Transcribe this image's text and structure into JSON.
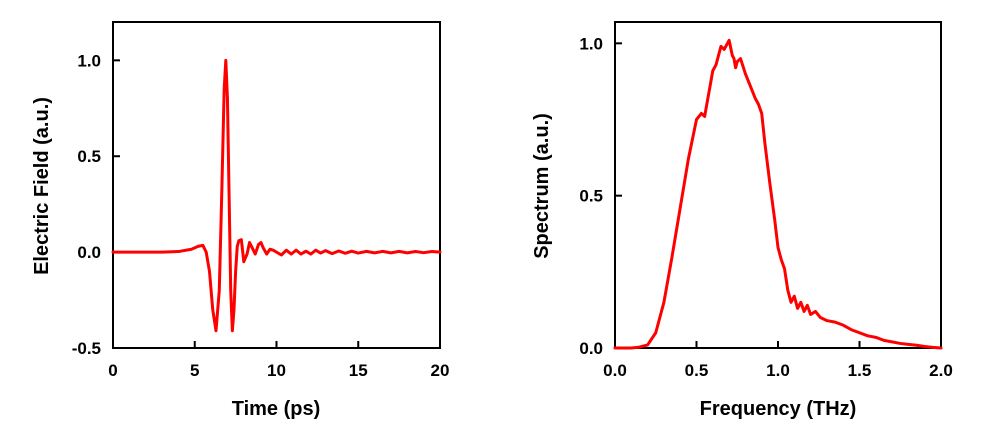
{
  "chart_data": [
    {
      "type": "line",
      "title": "",
      "xlabel": "Time (ps)",
      "ylabel": "Electric Field (a.u.)",
      "xlim": [
        0,
        20
      ],
      "ylim": [
        -0.5,
        1.2
      ],
      "xticks": [
        0,
        5,
        10,
        15,
        20
      ],
      "xtick_labels": [
        "0",
        "5",
        "10",
        "15",
        "20"
      ],
      "yticks": [
        -0.5,
        0.0,
        0.5,
        1.0
      ],
      "ytick_labels": [
        "-0.5",
        "0.0",
        "0.5",
        "1.0"
      ],
      "grid": false,
      "color": "#ff0000",
      "series": [
        {
          "x": [
            0,
            1,
            2,
            3,
            4,
            4.8,
            5.2,
            5.5,
            5.7,
            5.9,
            6.1,
            6.3,
            6.5,
            6.65,
            6.8,
            6.9,
            7.0,
            7.1,
            7.2,
            7.3,
            7.4,
            7.5,
            7.6,
            7.7,
            7.85,
            8.0,
            8.2,
            8.35,
            8.5,
            8.7,
            8.9,
            9.05,
            9.2,
            9.4,
            9.6,
            9.8,
            10.0,
            10.3,
            10.6,
            10.9,
            11.2,
            11.5,
            11.8,
            12.1,
            12.4,
            12.7,
            13.0,
            13.4,
            13.8,
            14.2,
            14.6,
            15.0,
            15.5,
            16.0,
            16.5,
            17.0,
            17.5,
            18.0,
            18.5,
            19.0,
            19.5,
            20.0
          ],
          "y": [
            0.0,
            0.0,
            0.0,
            0.0,
            0.003,
            0.015,
            0.03,
            0.035,
            0.0,
            -0.1,
            -0.3,
            -0.41,
            -0.2,
            0.3,
            0.85,
            1.0,
            0.8,
            0.3,
            -0.2,
            -0.41,
            -0.3,
            -0.1,
            0.03,
            0.06,
            0.065,
            -0.05,
            -0.01,
            0.05,
            0.025,
            -0.01,
            0.04,
            0.05,
            0.02,
            -0.01,
            0.015,
            0.01,
            0.0,
            -0.015,
            0.01,
            -0.01,
            0.01,
            -0.01,
            0.005,
            -0.01,
            0.01,
            -0.005,
            0.008,
            -0.008,
            0.006,
            -0.006,
            0.005,
            -0.005,
            0.004,
            -0.004,
            0.004,
            -0.004,
            0.004,
            -0.004,
            0.003,
            -0.003,
            0.003,
            0.0
          ]
        }
      ]
    },
    {
      "type": "line",
      "title": "",
      "xlabel": "Frequency (THz)",
      "ylabel": "Spectrum (a.u.)",
      "xlim": [
        0.0,
        2.0
      ],
      "ylim": [
        0.0,
        1.07
      ],
      "xticks": [
        0.0,
        0.5,
        1.0,
        1.5,
        2.0
      ],
      "xtick_labels": [
        "0.0",
        "0.5",
        "1.0",
        "1.5",
        "2.0"
      ],
      "yticks": [
        0.0,
        0.5,
        1.0
      ],
      "ytick_labels": [
        "0.0",
        "0.5",
        "1.0"
      ],
      "grid": false,
      "color": "#ff0000",
      "series": [
        {
          "x": [
            0.0,
            0.1,
            0.15,
            0.2,
            0.25,
            0.3,
            0.35,
            0.4,
            0.45,
            0.5,
            0.53,
            0.55,
            0.57,
            0.6,
            0.62,
            0.65,
            0.67,
            0.69,
            0.7,
            0.72,
            0.73,
            0.74,
            0.75,
            0.77,
            0.8,
            0.83,
            0.86,
            0.88,
            0.9,
            0.92,
            0.95,
            0.98,
            1.0,
            1.02,
            1.04,
            1.06,
            1.08,
            1.1,
            1.12,
            1.14,
            1.16,
            1.18,
            1.2,
            1.23,
            1.26,
            1.3,
            1.35,
            1.4,
            1.45,
            1.5,
            1.55,
            1.6,
            1.65,
            1.7,
            1.75,
            1.8,
            1.85,
            1.9,
            1.95,
            2.0
          ],
          "y": [
            0.0,
            0.0,
            0.003,
            0.01,
            0.05,
            0.15,
            0.3,
            0.46,
            0.62,
            0.75,
            0.77,
            0.76,
            0.82,
            0.91,
            0.93,
            0.99,
            0.98,
            1.0,
            1.01,
            0.96,
            0.95,
            0.92,
            0.94,
            0.95,
            0.9,
            0.86,
            0.82,
            0.8,
            0.77,
            0.67,
            0.54,
            0.42,
            0.33,
            0.29,
            0.26,
            0.19,
            0.15,
            0.17,
            0.13,
            0.15,
            0.12,
            0.14,
            0.11,
            0.12,
            0.1,
            0.09,
            0.085,
            0.075,
            0.06,
            0.05,
            0.04,
            0.035,
            0.025,
            0.02,
            0.015,
            0.012,
            0.009,
            0.005,
            0.002,
            0.0
          ]
        }
      ]
    }
  ]
}
